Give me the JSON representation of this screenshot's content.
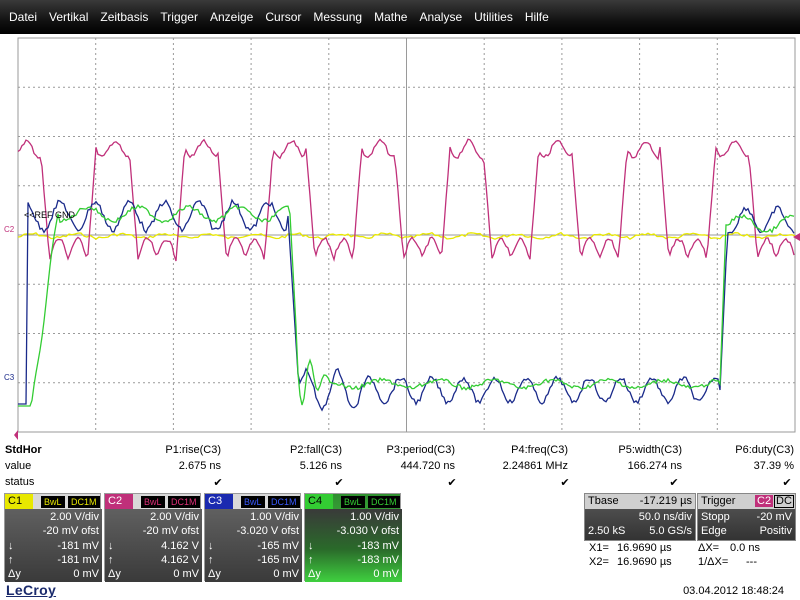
{
  "menu": [
    "Datei",
    "Vertikal",
    "Zeitbasis",
    "Trigger",
    "Anzeige",
    "Cursor",
    "Messung",
    "Mathe",
    "Analyse",
    "Utilities",
    "Hilfe"
  ],
  "grid": {
    "marker_refgnd": "<<REF GND",
    "marker_c2": "C2",
    "marker_c3": "C3",
    "colors": {
      "c1": "#e8e800",
      "c2": "#c0307a",
      "c3": "#1a2a8a",
      "c4": "#33cc33",
      "grid": "#9a9a9a"
    }
  },
  "measure": {
    "row_labels": {
      "name": "StdHor",
      "value": "value",
      "status": "status"
    },
    "params": [
      {
        "name": "P1:rise(C3)",
        "value": "2.675 ns"
      },
      {
        "name": "P2:fall(C3)",
        "value": "5.126 ns"
      },
      {
        "name": "P3:period(C3)",
        "value": "444.720 ns"
      },
      {
        "name": "P4:freq(C3)",
        "value": "2.24861 MHz"
      },
      {
        "name": "P5:width(C3)",
        "value": "166.274 ns"
      },
      {
        "name": "P6:duty(C3)",
        "value": "37.39 %"
      }
    ],
    "check": "✔"
  },
  "channels": [
    {
      "id": "C1",
      "bwl": "BwL",
      "coupling": "DC1M",
      "scale": "2.00 V/div",
      "offset": "-20 mV ofst",
      "min": "-181 mV",
      "max": "-181 mV",
      "dy": "0 mV",
      "color": "#e8e800"
    },
    {
      "id": "C2",
      "bwl": "BwL",
      "coupling": "DC1M",
      "scale": "2.00 V/div",
      "offset": "-20 mV ofst",
      "min": "4.162 V",
      "max": "4.162 V",
      "dy": "0 mV",
      "color": "#c0307a"
    },
    {
      "id": "C3",
      "bwl": "BwL",
      "coupling": "DC1M",
      "scale": "1.00 V/div",
      "offset": "-3.020 V ofst",
      "min": "-165 mV",
      "max": "-165 mV",
      "dy": "0 mV",
      "color": "#1a2aa0"
    },
    {
      "id": "C4",
      "bwl": "BwL",
      "coupling": "DC1M",
      "scale": "1.00 V/div",
      "offset": "-3.030 V ofst",
      "min": "-183 mV",
      "max": "-183 mV",
      "dy": "0 mV",
      "color": "#33cc33"
    }
  ],
  "symbols": {
    "down": "↓",
    "up": "↑",
    "dy": "Δy"
  },
  "timebase": {
    "label": "Tbase",
    "delay": "-17.219 µs",
    "scale": "50.0 ns/div",
    "samples": "2.50 kS",
    "rate": "5.0 GS/s"
  },
  "trigger": {
    "label": "Trigger",
    "source": "C2",
    "coupling": "DC",
    "mode": "Stopp",
    "level": "-20 mV",
    "type": "Edge",
    "slope": "Positiv"
  },
  "cursors": {
    "x1_label": "X1=",
    "x1": "16.9690 µs",
    "x2_label": "X2=",
    "x2": "16.9690 µs",
    "dx_label": "ΔX=",
    "dx": "0.0 ns",
    "inv_dx_label": "1/ΔX=",
    "inv_dx": "---"
  },
  "brand": "LeCroy",
  "datetime": "03.04.2012 18:48:24"
}
